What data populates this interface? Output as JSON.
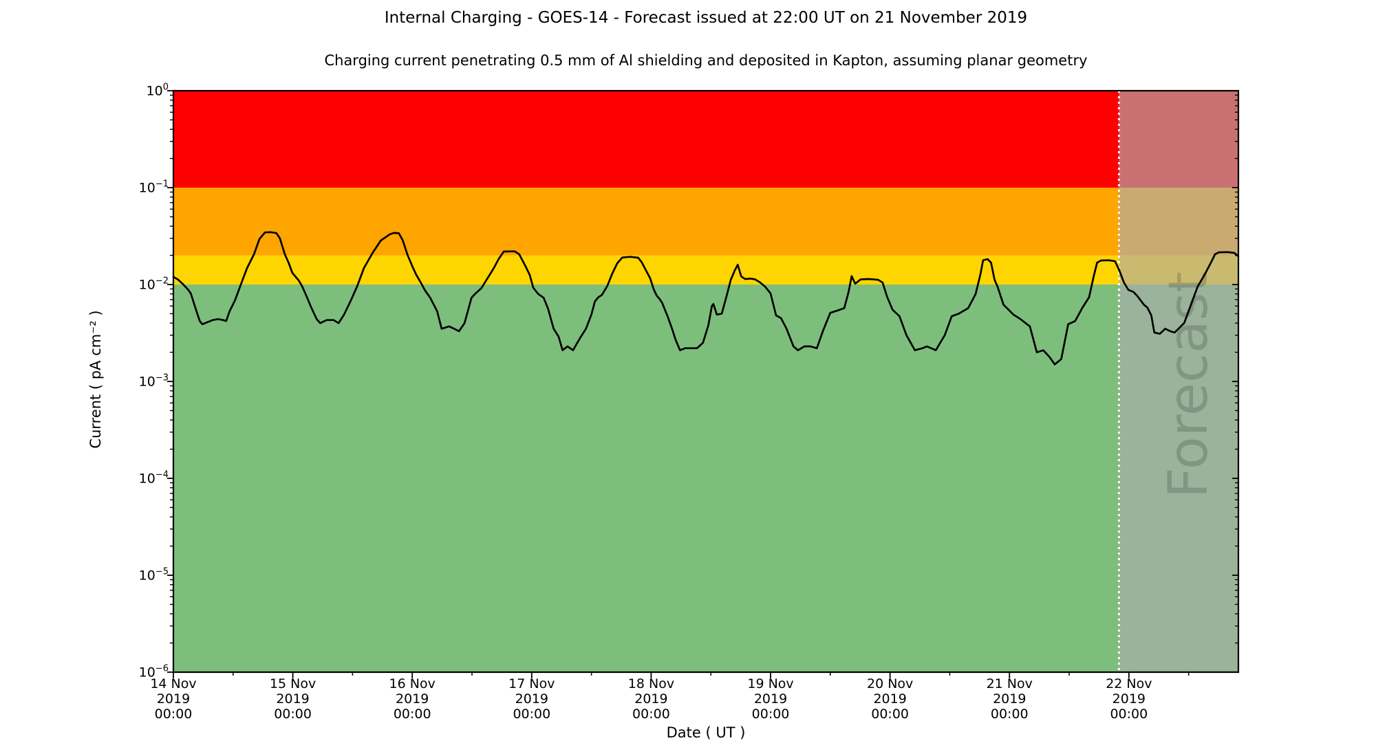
{
  "header": {
    "title": "Internal Charging - GOES-14 - Forecast issued at 22:00 UT on 21 November 2019",
    "subtitle": "Charging current penetrating 0.5 mm of Al shielding and deposited in Kapton, assuming planar geometry"
  },
  "x_axis": {
    "label": "Date ( UT )",
    "start": "14 Nov 2019 00:00",
    "end": "22 Nov 2019 22:00",
    "major_tick_interval_hours": 24,
    "minor_tick_interval_hours": 12,
    "ticks": [
      {
        "hours": 0,
        "lines": [
          "14 Nov",
          "2019",
          "00:00"
        ]
      },
      {
        "hours": 24,
        "lines": [
          "15 Nov",
          "2019",
          "00:00"
        ]
      },
      {
        "hours": 48,
        "lines": [
          "16 Nov",
          "2019",
          "00:00"
        ]
      },
      {
        "hours": 72,
        "lines": [
          "17 Nov",
          "2019",
          "00:00"
        ]
      },
      {
        "hours": 96,
        "lines": [
          "18 Nov",
          "2019",
          "00:00"
        ]
      },
      {
        "hours": 120,
        "lines": [
          "19 Nov",
          "2019",
          "00:00"
        ]
      },
      {
        "hours": 144,
        "lines": [
          "20 Nov",
          "2019",
          "00:00"
        ]
      },
      {
        "hours": 168,
        "lines": [
          "21 Nov",
          "2019",
          "00:00"
        ]
      },
      {
        "hours": 192,
        "lines": [
          "22 Nov",
          "2019",
          "00:00"
        ]
      }
    ]
  },
  "y_axis": {
    "label": "Current ( pA cm⁻² )",
    "unit": "pA cm⁻²",
    "scale": "log",
    "min": 1e-06,
    "max": 1,
    "ticks": [
      {
        "value": 1,
        "sup": "0"
      },
      {
        "value": 0.1,
        "sup": "−1"
      },
      {
        "value": 0.01,
        "sup": "−2"
      },
      {
        "value": 0.001,
        "sup": "−3"
      },
      {
        "value": 0.0001,
        "sup": "−4"
      },
      {
        "value": 1e-05,
        "sup": "−5"
      },
      {
        "value": 1e-06,
        "sup": "−6"
      }
    ]
  },
  "risk_bands": [
    {
      "name": "green",
      "color": "#7dbe7d",
      "from": 1e-06,
      "to": 0.01
    },
    {
      "name": "yellow",
      "color": "#ffd500",
      "from": 0.01,
      "to": 0.02
    },
    {
      "name": "orange",
      "color": "#ffa500",
      "from": 0.02,
      "to": 0.1
    },
    {
      "name": "red",
      "color": "#ff0000",
      "from": 0.1,
      "to": 1.0
    }
  ],
  "forecast": {
    "watermark": "Forecast",
    "boundary_hours": 190,
    "boundary_time": "21 Nov 2019 22:00 UT",
    "overlay_color": "#acacac",
    "overlay_opacity": 0.65,
    "divider_color": "#ffffff",
    "watermark_color": "#000000",
    "watermark_opacity": 0.16
  },
  "chart_data": {
    "type": "line",
    "title": "Internal Charging - GOES-14",
    "line_color": "#000000",
    "x_unit": "hours since 14 Nov 2019 00:00 UT",
    "y_unit": "pA cm⁻²",
    "x_range": [
      0,
      214
    ],
    "y_range": [
      1e-06,
      1
    ],
    "grid": false,
    "points": [
      [
        0,
        0.012
      ],
      [
        1,
        0.0112
      ],
      [
        2,
        0.01
      ],
      [
        3,
        0.0088
      ],
      [
        3.5,
        0.0081
      ],
      [
        4.4,
        0.0058
      ],
      [
        5.3,
        0.0042
      ],
      [
        5.8,
        0.0039
      ],
      [
        6.9,
        0.0041
      ],
      [
        7.9,
        0.0043
      ],
      [
        9,
        0.0044
      ],
      [
        10,
        0.0043
      ],
      [
        10.6,
        0.0042
      ],
      [
        11.3,
        0.0053
      ],
      [
        12.4,
        0.0069
      ],
      [
        13.4,
        0.0095
      ],
      [
        14.8,
        0.0148
      ],
      [
        16.2,
        0.0205
      ],
      [
        17.3,
        0.0295
      ],
      [
        18.4,
        0.0345
      ],
      [
        19.5,
        0.0347
      ],
      [
        20.7,
        0.034
      ],
      [
        21.4,
        0.03
      ],
      [
        22.4,
        0.0205
      ],
      [
        23.2,
        0.0166
      ],
      [
        23.9,
        0.0132
      ],
      [
        25.2,
        0.011
      ],
      [
        25.9,
        0.0095
      ],
      [
        26.7,
        0.0077
      ],
      [
        27.7,
        0.0058
      ],
      [
        28.8,
        0.0044
      ],
      [
        29.5,
        0.004
      ],
      [
        30.8,
        0.0043
      ],
      [
        32.2,
        0.0043
      ],
      [
        33.2,
        0.004
      ],
      [
        34.3,
        0.0049
      ],
      [
        35.7,
        0.0069
      ],
      [
        36.9,
        0.0095
      ],
      [
        38.3,
        0.0148
      ],
      [
        40.1,
        0.0215
      ],
      [
        41.7,
        0.0285
      ],
      [
        43.5,
        0.033
      ],
      [
        44.3,
        0.0341
      ],
      [
        45.3,
        0.0338
      ],
      [
        46.1,
        0.0285
      ],
      [
        47,
        0.0205
      ],
      [
        48,
        0.0155
      ],
      [
        48.8,
        0.0126
      ],
      [
        49.8,
        0.0103
      ],
      [
        50.5,
        0.0088
      ],
      [
        51.6,
        0.0073
      ],
      [
        53,
        0.0053
      ],
      [
        53.9,
        0.0035
      ],
      [
        55.4,
        0.0037
      ],
      [
        56.4,
        0.0035
      ],
      [
        57.4,
        0.0033
      ],
      [
        58.5,
        0.004
      ],
      [
        59.9,
        0.0073
      ],
      [
        60.6,
        0.008
      ],
      [
        61.9,
        0.0092
      ],
      [
        63.3,
        0.012
      ],
      [
        64.4,
        0.0148
      ],
      [
        65.4,
        0.0185
      ],
      [
        66.4,
        0.0219
      ],
      [
        68.6,
        0.022
      ],
      [
        69.5,
        0.0205
      ],
      [
        70.6,
        0.016
      ],
      [
        71.6,
        0.0126
      ],
      [
        72.3,
        0.0093
      ],
      [
        73.3,
        0.008
      ],
      [
        74.4,
        0.0073
      ],
      [
        75.3,
        0.0056
      ],
      [
        76.4,
        0.0035
      ],
      [
        77.4,
        0.0029
      ],
      [
        78.2,
        0.0021
      ],
      [
        79.2,
        0.0023
      ],
      [
        80.3,
        0.0021
      ],
      [
        81.7,
        0.0028
      ],
      [
        82.9,
        0.0035
      ],
      [
        84,
        0.0049
      ],
      [
        84.7,
        0.0067
      ],
      [
        85.4,
        0.0074
      ],
      [
        86.1,
        0.0078
      ],
      [
        87.2,
        0.0097
      ],
      [
        88.2,
        0.013
      ],
      [
        89.2,
        0.0166
      ],
      [
        90.2,
        0.019
      ],
      [
        91.8,
        0.0193
      ],
      [
        93.4,
        0.0189
      ],
      [
        94.1,
        0.017
      ],
      [
        95.1,
        0.0136
      ],
      [
        95.8,
        0.0116
      ],
      [
        96.5,
        0.009
      ],
      [
        97.1,
        0.0077
      ],
      [
        97.7,
        0.0071
      ],
      [
        98.2,
        0.0065
      ],
      [
        99.3,
        0.0047
      ],
      [
        100.2,
        0.0035
      ],
      [
        100.9,
        0.0027
      ],
      [
        101.8,
        0.0021
      ],
      [
        102.8,
        0.0022
      ],
      [
        104,
        0.0022
      ],
      [
        105.2,
        0.0022
      ],
      [
        106.4,
        0.0025
      ],
      [
        107.5,
        0.0038
      ],
      [
        108.2,
        0.006
      ],
      [
        108.5,
        0.0063
      ],
      [
        109.2,
        0.0049
      ],
      [
        110.2,
        0.005
      ],
      [
        111.3,
        0.0081
      ],
      [
        112,
        0.0112
      ],
      [
        112.8,
        0.014
      ],
      [
        113.4,
        0.016
      ],
      [
        114.1,
        0.0121
      ],
      [
        114.9,
        0.0114
      ],
      [
        116,
        0.0115
      ],
      [
        116.9,
        0.0113
      ],
      [
        117.9,
        0.0105
      ],
      [
        118.9,
        0.0095
      ],
      [
        120,
        0.0081
      ],
      [
        121.1,
        0.0048
      ],
      [
        122.1,
        0.0045
      ],
      [
        123.2,
        0.0035
      ],
      [
        124.6,
        0.0023
      ],
      [
        125.5,
        0.0021
      ],
      [
        126.8,
        0.0023
      ],
      [
        128,
        0.0023
      ],
      [
        129.3,
        0.0022
      ],
      [
        130.5,
        0.0033
      ],
      [
        132,
        0.0051
      ],
      [
        133.5,
        0.0054
      ],
      [
        134.8,
        0.0057
      ],
      [
        135.7,
        0.0085
      ],
      [
        136.3,
        0.0122
      ],
      [
        137,
        0.0102
      ],
      [
        138.1,
        0.0113
      ],
      [
        139.8,
        0.0114
      ],
      [
        141.6,
        0.0112
      ],
      [
        142.5,
        0.0105
      ],
      [
        143.4,
        0.0075
      ],
      [
        144.5,
        0.0055
      ],
      [
        145.9,
        0.0047
      ],
      [
        147.3,
        0.003
      ],
      [
        149,
        0.0021
      ],
      [
        150.5,
        0.0022
      ],
      [
        151.4,
        0.0023
      ],
      [
        152.3,
        0.0022
      ],
      [
        153.2,
        0.0021
      ],
      [
        155,
        0.003
      ],
      [
        156.4,
        0.0047
      ],
      [
        157.8,
        0.005
      ],
      [
        159.7,
        0.0057
      ],
      [
        161.2,
        0.008
      ],
      [
        162.2,
        0.013
      ],
      [
        162.7,
        0.0178
      ],
      [
        163.6,
        0.0183
      ],
      [
        164.3,
        0.0168
      ],
      [
        165,
        0.0112
      ],
      [
        165.6,
        0.0095
      ],
      [
        166.8,
        0.0062
      ],
      [
        168.8,
        0.0049
      ],
      [
        170.2,
        0.0044
      ],
      [
        172.1,
        0.0037
      ],
      [
        173.5,
        0.002
      ],
      [
        174.8,
        0.0021
      ],
      [
        176,
        0.0018
      ],
      [
        177.1,
        0.0015
      ],
      [
        178.4,
        0.0017
      ],
      [
        179.8,
        0.0039
      ],
      [
        181.2,
        0.0042
      ],
      [
        182.6,
        0.0057
      ],
      [
        184,
        0.0074
      ],
      [
        184.9,
        0.012
      ],
      [
        185.6,
        0.0168
      ],
      [
        186.4,
        0.0177
      ],
      [
        188,
        0.0178
      ],
      [
        189.2,
        0.0174
      ],
      [
        190,
        0.0143
      ],
      [
        191,
        0.0105
      ],
      [
        191.9,
        0.0088
      ],
      [
        192.9,
        0.0084
      ],
      [
        193.7,
        0.0076
      ],
      [
        195,
        0.0062
      ],
      [
        195.7,
        0.0058
      ],
      [
        196.5,
        0.0048
      ],
      [
        197.1,
        0.0032
      ],
      [
        198.2,
        0.0031
      ],
      [
        199.3,
        0.0035
      ],
      [
        200.3,
        0.0033
      ],
      [
        201.2,
        0.0032
      ],
      [
        202.2,
        0.0036
      ],
      [
        203.1,
        0.004
      ],
      [
        204.1,
        0.0055
      ],
      [
        205.8,
        0.0095
      ],
      [
        207.2,
        0.0126
      ],
      [
        208.4,
        0.0165
      ],
      [
        209.3,
        0.0205
      ],
      [
        210.1,
        0.0215
      ],
      [
        211.9,
        0.0216
      ],
      [
        213.2,
        0.0212
      ],
      [
        214,
        0.0195
      ]
    ]
  }
}
